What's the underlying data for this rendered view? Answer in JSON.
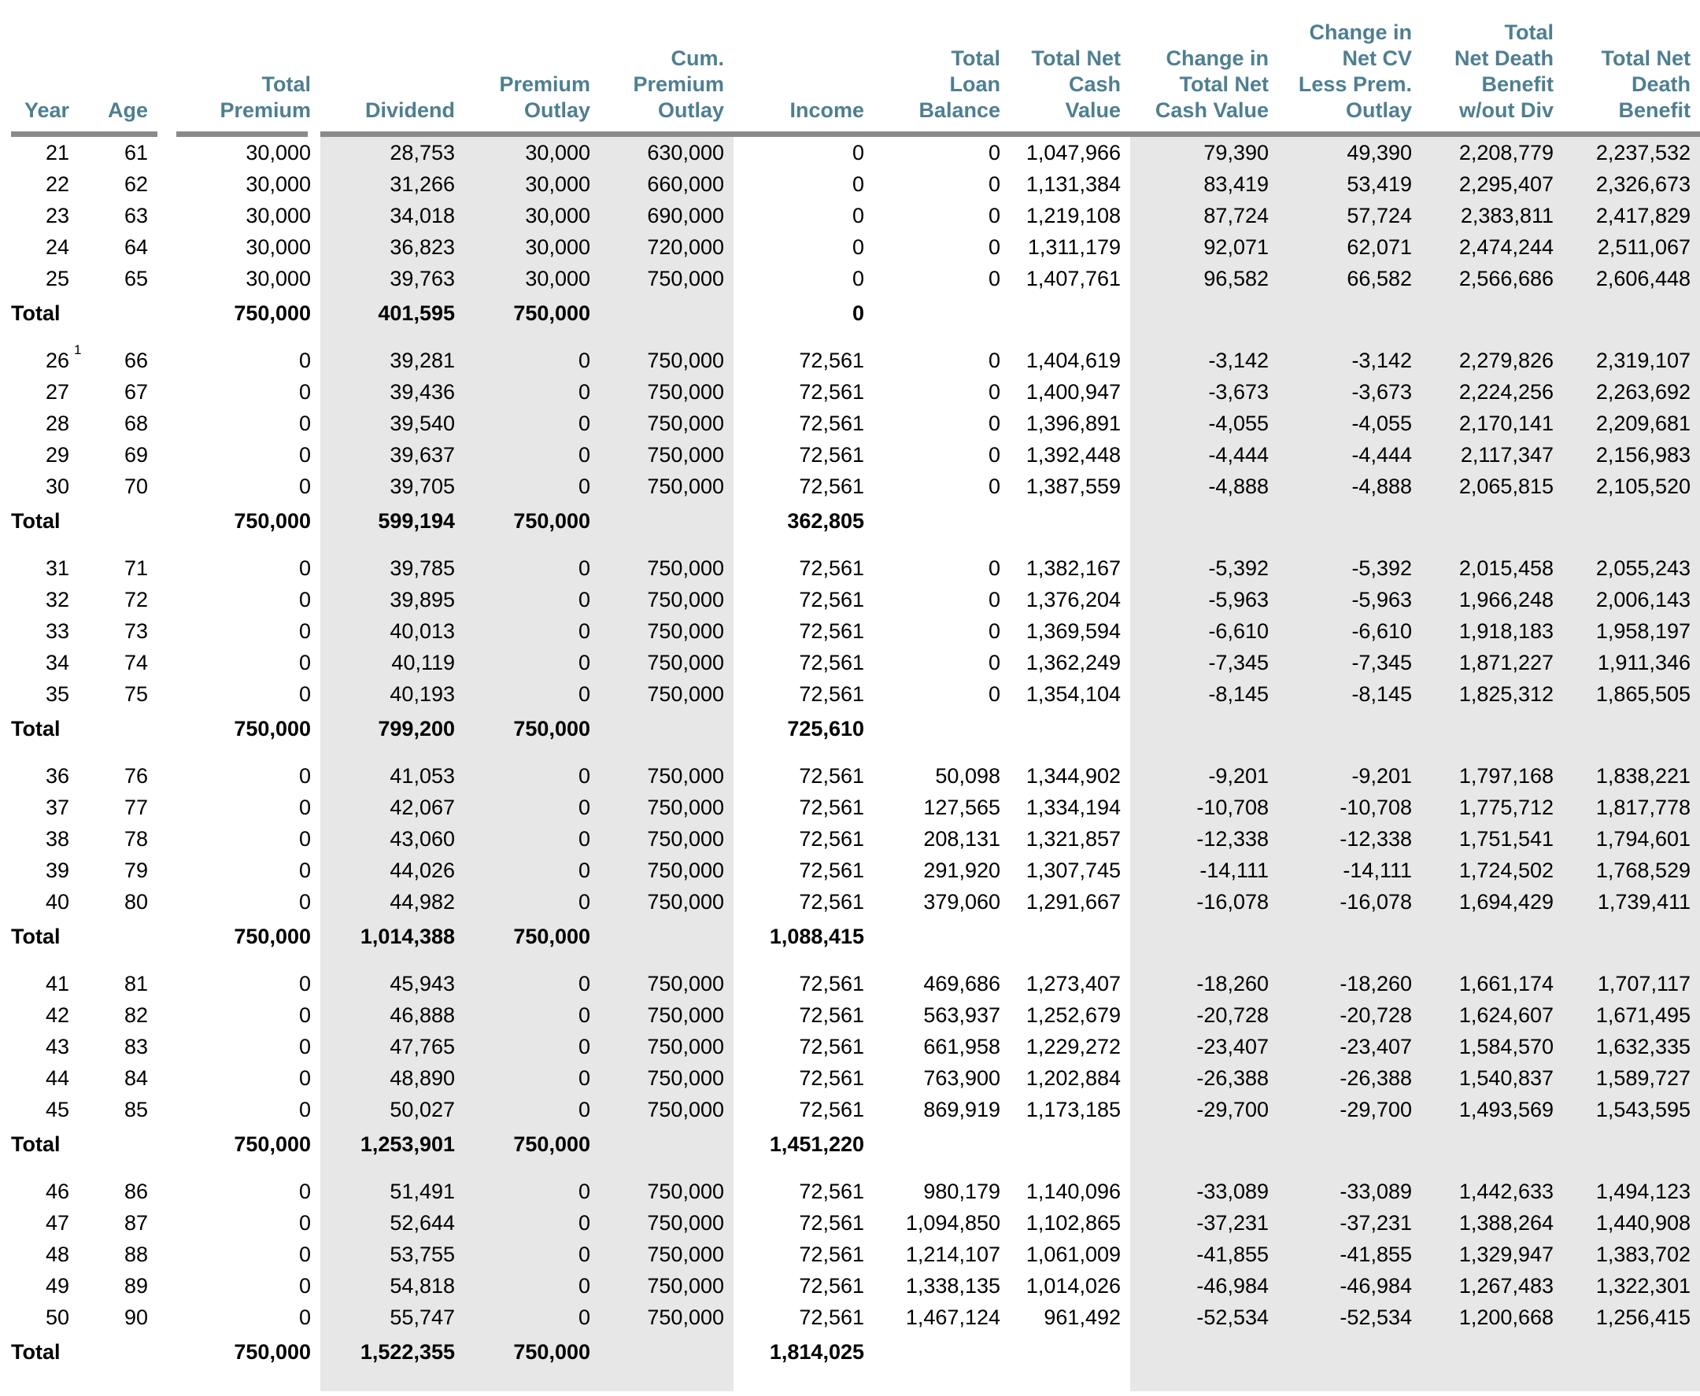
{
  "colors": {
    "accent": "#4e7f90",
    "shade": "#e7e7e7",
    "rule": "#8a8a8a",
    "text": "#000000"
  },
  "table": {
    "headers": [
      "Year",
      "Age",
      "Total\nPremium",
      "Dividend",
      "Premium\nOutlay",
      "Cum.\nPremium\nOutlay",
      "Income",
      "Total\nLoan\nBalance",
      "Total Net\nCash\nValue",
      "Change in\nTotal Net\nCash Value",
      "Change in\nNet CV\nLess Prem.\nOutlay",
      "Total\nNet Death\nBenefit\nw/out Div",
      "Total Net\nDeath\nBenefit"
    ],
    "total_label": "Total",
    "blocks": [
      {
        "rows": [
          [
            "21",
            "61",
            "30,000",
            "28,753",
            "30,000",
            "630,000",
            "0",
            "0",
            "1,047,966",
            "79,390",
            "49,390",
            "2,208,779",
            "2,237,532"
          ],
          [
            "22",
            "62",
            "30,000",
            "31,266",
            "30,000",
            "660,000",
            "0",
            "0",
            "1,131,384",
            "83,419",
            "53,419",
            "2,295,407",
            "2,326,673"
          ],
          [
            "23",
            "63",
            "30,000",
            "34,018",
            "30,000",
            "690,000",
            "0",
            "0",
            "1,219,108",
            "87,724",
            "57,724",
            "2,383,811",
            "2,417,829"
          ],
          [
            "24",
            "64",
            "30,000",
            "36,823",
            "30,000",
            "720,000",
            "0",
            "0",
            "1,311,179",
            "92,071",
            "62,071",
            "2,474,244",
            "2,511,067"
          ],
          [
            "25",
            "65",
            "30,000",
            "39,763",
            "30,000",
            "750,000",
            "0",
            "0",
            "1,407,761",
            "96,582",
            "66,582",
            "2,566,686",
            "2,606,448"
          ]
        ],
        "total": {
          "premium": "750,000",
          "dividend": "401,595",
          "outlay": "750,000",
          "income": "0"
        }
      },
      {
        "footnote": {
          "row": 0,
          "mark": "1"
        },
        "rows": [
          [
            "26",
            "66",
            "0",
            "39,281",
            "0",
            "750,000",
            "72,561",
            "0",
            "1,404,619",
            "-3,142",
            "-3,142",
            "2,279,826",
            "2,319,107"
          ],
          [
            "27",
            "67",
            "0",
            "39,436",
            "0",
            "750,000",
            "72,561",
            "0",
            "1,400,947",
            "-3,673",
            "-3,673",
            "2,224,256",
            "2,263,692"
          ],
          [
            "28",
            "68",
            "0",
            "39,540",
            "0",
            "750,000",
            "72,561",
            "0",
            "1,396,891",
            "-4,055",
            "-4,055",
            "2,170,141",
            "2,209,681"
          ],
          [
            "29",
            "69",
            "0",
            "39,637",
            "0",
            "750,000",
            "72,561",
            "0",
            "1,392,448",
            "-4,444",
            "-4,444",
            "2,117,347",
            "2,156,983"
          ],
          [
            "30",
            "70",
            "0",
            "39,705",
            "0",
            "750,000",
            "72,561",
            "0",
            "1,387,559",
            "-4,888",
            "-4,888",
            "2,065,815",
            "2,105,520"
          ]
        ],
        "total": {
          "premium": "750,000",
          "dividend": "599,194",
          "outlay": "750,000",
          "income": "362,805"
        }
      },
      {
        "rows": [
          [
            "31",
            "71",
            "0",
            "39,785",
            "0",
            "750,000",
            "72,561",
            "0",
            "1,382,167",
            "-5,392",
            "-5,392",
            "2,015,458",
            "2,055,243"
          ],
          [
            "32",
            "72",
            "0",
            "39,895",
            "0",
            "750,000",
            "72,561",
            "0",
            "1,376,204",
            "-5,963",
            "-5,963",
            "1,966,248",
            "2,006,143"
          ],
          [
            "33",
            "73",
            "0",
            "40,013",
            "0",
            "750,000",
            "72,561",
            "0",
            "1,369,594",
            "-6,610",
            "-6,610",
            "1,918,183",
            "1,958,197"
          ],
          [
            "34",
            "74",
            "0",
            "40,119",
            "0",
            "750,000",
            "72,561",
            "0",
            "1,362,249",
            "-7,345",
            "-7,345",
            "1,871,227",
            "1,911,346"
          ],
          [
            "35",
            "75",
            "0",
            "40,193",
            "0",
            "750,000",
            "72,561",
            "0",
            "1,354,104",
            "-8,145",
            "-8,145",
            "1,825,312",
            "1,865,505"
          ]
        ],
        "total": {
          "premium": "750,000",
          "dividend": "799,200",
          "outlay": "750,000",
          "income": "725,610"
        }
      },
      {
        "rows": [
          [
            "36",
            "76",
            "0",
            "41,053",
            "0",
            "750,000",
            "72,561",
            "50,098",
            "1,344,902",
            "-9,201",
            "-9,201",
            "1,797,168",
            "1,838,221"
          ],
          [
            "37",
            "77",
            "0",
            "42,067",
            "0",
            "750,000",
            "72,561",
            "127,565",
            "1,334,194",
            "-10,708",
            "-10,708",
            "1,775,712",
            "1,817,778"
          ],
          [
            "38",
            "78",
            "0",
            "43,060",
            "0",
            "750,000",
            "72,561",
            "208,131",
            "1,321,857",
            "-12,338",
            "-12,338",
            "1,751,541",
            "1,794,601"
          ],
          [
            "39",
            "79",
            "0",
            "44,026",
            "0",
            "750,000",
            "72,561",
            "291,920",
            "1,307,745",
            "-14,111",
            "-14,111",
            "1,724,502",
            "1,768,529"
          ],
          [
            "40",
            "80",
            "0",
            "44,982",
            "0",
            "750,000",
            "72,561",
            "379,060",
            "1,291,667",
            "-16,078",
            "-16,078",
            "1,694,429",
            "1,739,411"
          ]
        ],
        "total": {
          "premium": "750,000",
          "dividend": "1,014,388",
          "outlay": "750,000",
          "income": "1,088,415"
        }
      },
      {
        "rows": [
          [
            "41",
            "81",
            "0",
            "45,943",
            "0",
            "750,000",
            "72,561",
            "469,686",
            "1,273,407",
            "-18,260",
            "-18,260",
            "1,661,174",
            "1,707,117"
          ],
          [
            "42",
            "82",
            "0",
            "46,888",
            "0",
            "750,000",
            "72,561",
            "563,937",
            "1,252,679",
            "-20,728",
            "-20,728",
            "1,624,607",
            "1,671,495"
          ],
          [
            "43",
            "83",
            "0",
            "47,765",
            "0",
            "750,000",
            "72,561",
            "661,958",
            "1,229,272",
            "-23,407",
            "-23,407",
            "1,584,570",
            "1,632,335"
          ],
          [
            "44",
            "84",
            "0",
            "48,890",
            "0",
            "750,000",
            "72,561",
            "763,900",
            "1,202,884",
            "-26,388",
            "-26,388",
            "1,540,837",
            "1,589,727"
          ],
          [
            "45",
            "85",
            "0",
            "50,027",
            "0",
            "750,000",
            "72,561",
            "869,919",
            "1,173,185",
            "-29,700",
            "-29,700",
            "1,493,569",
            "1,543,595"
          ]
        ],
        "total": {
          "premium": "750,000",
          "dividend": "1,253,901",
          "outlay": "750,000",
          "income": "1,451,220"
        }
      },
      {
        "rows": [
          [
            "46",
            "86",
            "0",
            "51,491",
            "0",
            "750,000",
            "72,561",
            "980,179",
            "1,140,096",
            "-33,089",
            "-33,089",
            "1,442,633",
            "1,494,123"
          ],
          [
            "47",
            "87",
            "0",
            "52,644",
            "0",
            "750,000",
            "72,561",
            "1,094,850",
            "1,102,865",
            "-37,231",
            "-37,231",
            "1,388,264",
            "1,440,908"
          ],
          [
            "48",
            "88",
            "0",
            "53,755",
            "0",
            "750,000",
            "72,561",
            "1,214,107",
            "1,061,009",
            "-41,855",
            "-41,855",
            "1,329,947",
            "1,383,702"
          ],
          [
            "49",
            "89",
            "0",
            "54,818",
            "0",
            "750,000",
            "72,561",
            "1,338,135",
            "1,014,026",
            "-46,984",
            "-46,984",
            "1,267,483",
            "1,322,301"
          ],
          [
            "50",
            "90",
            "0",
            "55,747",
            "0",
            "750,000",
            "72,561",
            "1,467,124",
            "961,492",
            "-52,534",
            "-52,534",
            "1,200,668",
            "1,256,415"
          ]
        ],
        "total": {
          "premium": "750,000",
          "dividend": "1,522,355",
          "outlay": "750,000",
          "income": "1,814,025"
        }
      }
    ]
  }
}
